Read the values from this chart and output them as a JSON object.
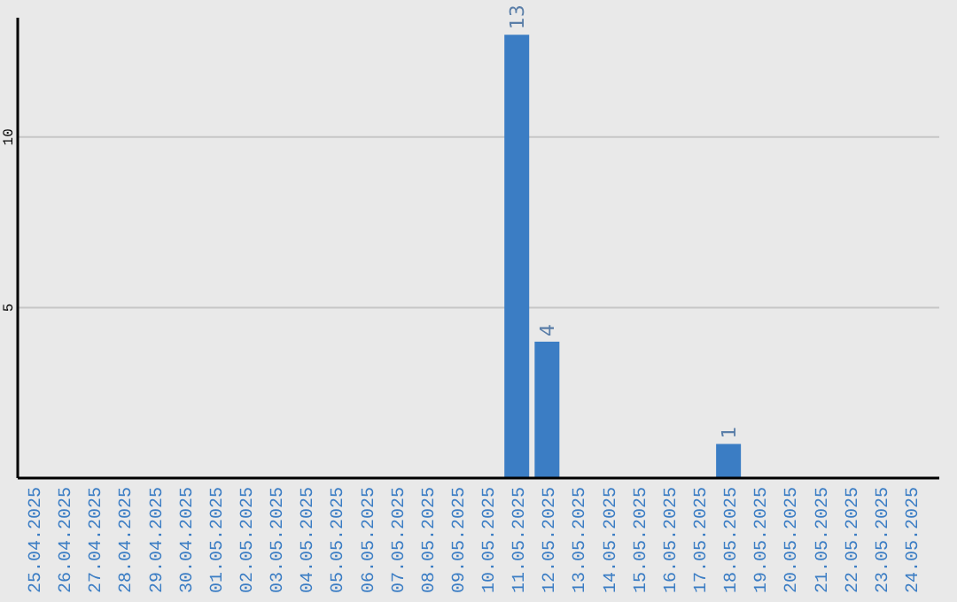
{
  "chart_data": {
    "type": "bar",
    "categories": [
      "25.04.2025",
      "26.04.2025",
      "27.04.2025",
      "28.04.2025",
      "29.04.2025",
      "30.04.2025",
      "01.05.2025",
      "02.05.2025",
      "03.05.2025",
      "04.05.2025",
      "05.05.2025",
      "06.05.2025",
      "07.05.2025",
      "08.05.2025",
      "09.05.2025",
      "10.05.2025",
      "11.05.2025",
      "12.05.2025",
      "13.05.2025",
      "14.05.2025",
      "15.05.2025",
      "16.05.2025",
      "17.05.2025",
      "18.05.2025",
      "19.05.2025",
      "20.05.2025",
      "21.05.2025",
      "22.05.2025",
      "23.05.2025",
      "24.05.2025"
    ],
    "values": [
      0,
      0,
      0,
      0,
      0,
      0,
      0,
      0,
      0,
      0,
      0,
      0,
      0,
      0,
      0,
      0,
      13,
      4,
      0,
      0,
      0,
      0,
      0,
      1,
      0,
      0,
      0,
      0,
      0,
      0
    ],
    "value_labels": [
      null,
      null,
      null,
      null,
      null,
      null,
      null,
      null,
      null,
      null,
      null,
      null,
      null,
      null,
      null,
      null,
      "13",
      "4",
      null,
      null,
      null,
      null,
      null,
      "1",
      null,
      null,
      null,
      null,
      null,
      null
    ],
    "color": "#3b7dc4",
    "ylim": [
      0,
      13.5
    ],
    "yticks": [
      5,
      10
    ],
    "grid": "y"
  }
}
